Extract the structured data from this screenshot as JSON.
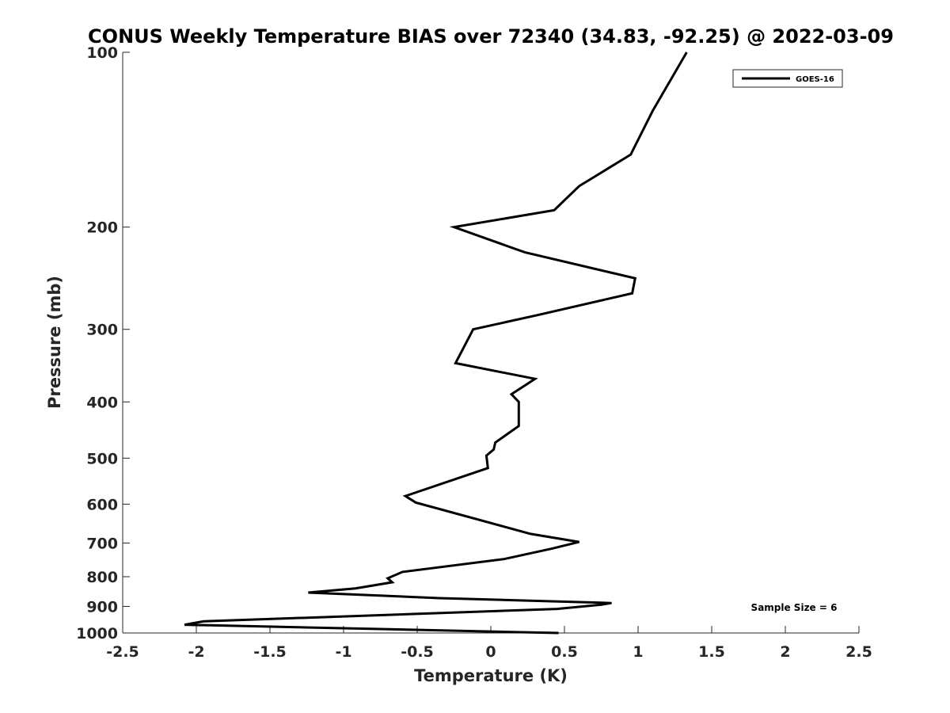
{
  "chart_data": {
    "type": "line",
    "title": "CONUS Weekly Temperature BIAS over 72340 (34.83, -92.25) @ 2022-03-09",
    "xlabel": "Temperature (K)",
    "ylabel": "Pressure (mb)",
    "xlim": [
      -2.5,
      2.5
    ],
    "ylim": [
      100,
      1000
    ],
    "y_scale": "log",
    "y_reversed": true,
    "grid": false,
    "legend_position": "top-right",
    "x_ticks": [
      "-2.5",
      "-2",
      "-1.5",
      "-1",
      "-0.5",
      "0",
      "0.5",
      "1",
      "1.5",
      "2",
      "2.5"
    ],
    "y_ticks": [
      "100",
      "200",
      "300",
      "400",
      "500",
      "600",
      "700",
      "800",
      "900",
      "1000"
    ],
    "annotation": "Sample Size = 6",
    "color": "#000000",
    "series": [
      {
        "name": "GOES-16",
        "points": [
          [
            1.33,
            100
          ],
          [
            1.1,
            126
          ],
          [
            0.95,
            150
          ],
          [
            0.6,
            170
          ],
          [
            0.43,
            187
          ],
          [
            -0.25,
            200
          ],
          [
            0.23,
            221
          ],
          [
            0.98,
            245
          ],
          [
            0.96,
            260
          ],
          [
            0.33,
            283
          ],
          [
            -0.12,
            300
          ],
          [
            -0.24,
            343
          ],
          [
            0.3,
            365
          ],
          [
            0.14,
            388
          ],
          [
            0.19,
            400
          ],
          [
            0.19,
            440
          ],
          [
            0.03,
            470
          ],
          [
            0.02,
            483
          ],
          [
            -0.03,
            495
          ],
          [
            -0.02,
            520
          ],
          [
            -0.58,
            581
          ],
          [
            -0.51,
            596
          ],
          [
            0.27,
            675
          ],
          [
            0.6,
            697
          ],
          [
            0.41,
            716
          ],
          [
            0.09,
            746
          ],
          [
            -0.6,
            785
          ],
          [
            -0.7,
            805
          ],
          [
            -0.67,
            818
          ],
          [
            -0.92,
            838
          ],
          [
            -1.24,
            852
          ],
          [
            -0.35,
            871
          ],
          [
            0.82,
            888
          ],
          [
            0.75,
            894
          ],
          [
            0.45,
            909
          ],
          [
            -1.95,
            955
          ],
          [
            -2.08,
            968
          ],
          [
            0.46,
            1000
          ]
        ]
      }
    ]
  }
}
